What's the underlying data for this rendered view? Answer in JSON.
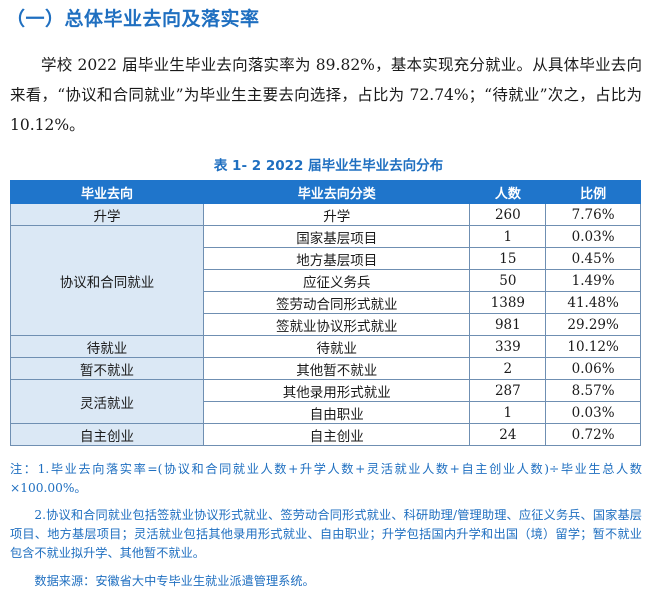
{
  "heading": "（一）总体毕业去向及落实率",
  "paragraph": "学校 2022 届毕业生毕业去向落实率为 89.82%，基本实现充分就业。从具体毕业去向来看，“协议和合同就业”为毕业生主要去向选择，占比为 72.74%；“待就业”次之，占比为 10.12%。",
  "table": {
    "caption": "表 1- 2    2022 届毕业生毕业去向分布",
    "headers": [
      "毕业去向",
      "毕业去向分类",
      "人数",
      "比例"
    ],
    "groups": [
      {
        "name": "升学",
        "rows": [
          {
            "category": "升学",
            "count": "260",
            "ratio": "7.76%"
          }
        ]
      },
      {
        "name": "协议和合同就业",
        "rows": [
          {
            "category": "国家基层项目",
            "count": "1",
            "ratio": "0.03%"
          },
          {
            "category": "地方基层项目",
            "count": "15",
            "ratio": "0.45%"
          },
          {
            "category": "应征义务兵",
            "count": "50",
            "ratio": "1.49%"
          },
          {
            "category": "签劳动合同形式就业",
            "count": "1389",
            "ratio": "41.48%"
          },
          {
            "category": "签就业协议形式就业",
            "count": "981",
            "ratio": "29.29%"
          }
        ]
      },
      {
        "name": "待就业",
        "rows": [
          {
            "category": "待就业",
            "count": "339",
            "ratio": "10.12%"
          }
        ]
      },
      {
        "name": "暂不就业",
        "rows": [
          {
            "category": "其他暂不就业",
            "count": "2",
            "ratio": "0.06%"
          }
        ]
      },
      {
        "name": "灵活就业",
        "rows": [
          {
            "category": "其他录用形式就业",
            "count": "287",
            "ratio": "8.57%"
          },
          {
            "category": "自由职业",
            "count": "1",
            "ratio": "0.03%"
          }
        ]
      },
      {
        "name": "自主创业",
        "rows": [
          {
            "category": "自主创业",
            "count": "24",
            "ratio": "0.72%"
          }
        ]
      }
    ]
  },
  "notes": {
    "note1": "注：1.毕业去向落实率=(协议和合同就业人数+升学人数+灵活就业人数+自主创业人数)÷毕业生总人数×100.00%。",
    "note2": "2.协议和合同就业包括签就业协议形式就业、签劳动合同形式就业、科研助理/管理助理、应征义务兵、国家基层项目、地方基层项目；灵活就业包括其他录用形式就业、自由职业；升学包括国内升学和出国（境）留学；暂不就业包含不就业拟升学、其他暂不就业。",
    "source": "数据来源：安徽省大中专毕业生就业派遣管理系统。"
  },
  "colors": {
    "accent": "#1f6fc0",
    "header_bg": "#1f75cb",
    "group_bg": "#dbe8f5"
  }
}
